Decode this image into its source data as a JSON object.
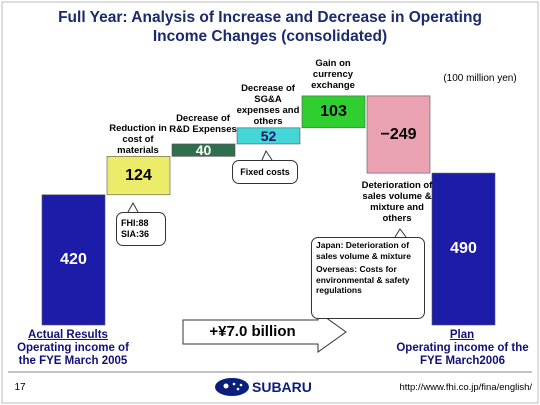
{
  "title": "Full Year: Analysis of Increase and Decrease in Operating Income Changes (consolidated)",
  "unit_note": "(100 million yen)",
  "chart_data": {
    "type": "waterfall",
    "categories": [
      "Actual Results",
      "Reduction in cost of materials",
      "Decrease of R&D Expenses",
      "Decrease of SG&A expenses and others",
      "Gain on currency exchange",
      "Deterioration of sales volume & mixture and others",
      "Plan"
    ],
    "values": [
      420,
      124,
      40,
      52,
      103,
      -249,
      490
    ],
    "value_labels": [
      "420",
      "124",
      "40",
      "52",
      "103",
      "−249",
      "490"
    ],
    "colors": [
      "#1c1ca8",
      "#ecec6a",
      "#2f6f50",
      "#44d6d6",
      "#2fcf2f",
      "#eaa2b2",
      "#1c1ca8"
    ],
    "value_label_colors": [
      "#ffffff",
      "#000000",
      "#ffffff",
      "#1a1a6a",
      "#000000",
      "#000000",
      "#ffffff"
    ]
  },
  "annotations": {
    "actual_note": "Operating income of the FYE March 2005",
    "plan_note": "Operating income of the FYE March2006",
    "materials_fhi": "FHI:88",
    "materials_sia": "SIA:36",
    "sga_note": "Fixed costs",
    "japan_note": "Japan: Deterioration of sales volume & mixture",
    "overseas_note": "Overseas: Costs for environmental & safety regulations",
    "total_change": "+¥7.0 billion"
  },
  "footer": {
    "page": "17",
    "logo": "SUBARU",
    "url": "http://www.fhi.co.jp/fina/english/"
  }
}
